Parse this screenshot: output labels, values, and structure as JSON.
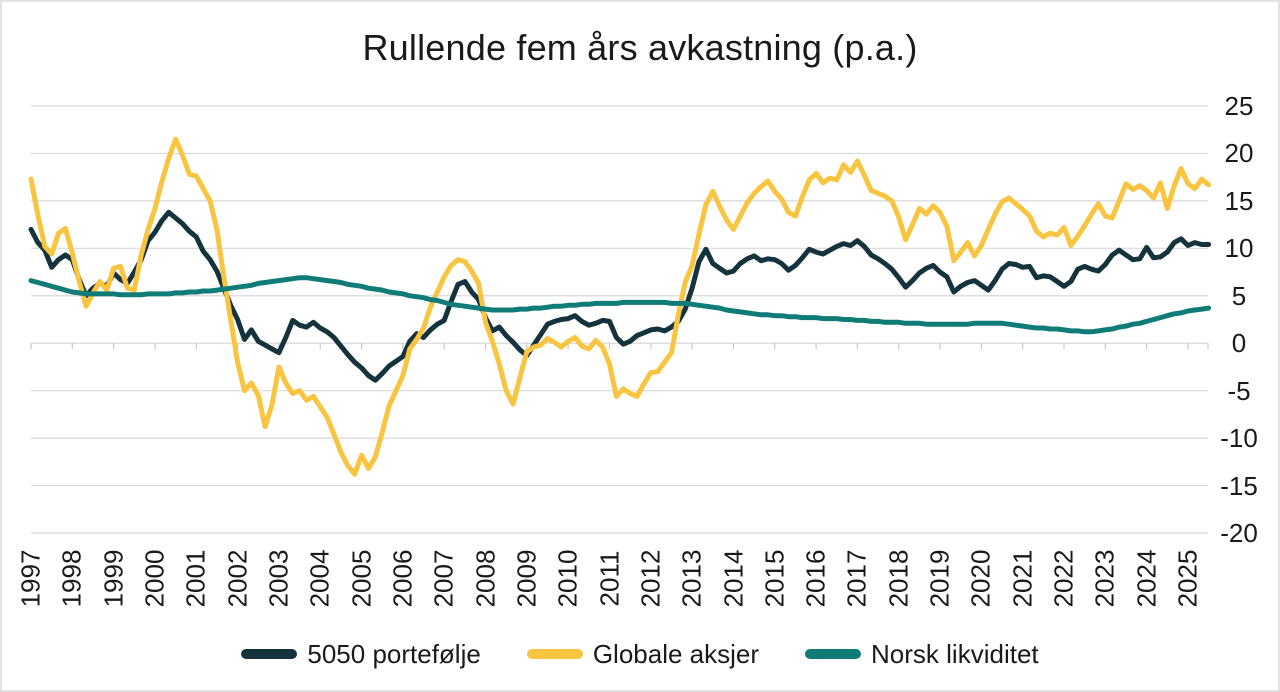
{
  "window": {
    "background": "#FFFFFF",
    "border_color": "#E2E2E2",
    "text_color": "#1A1A1A"
  },
  "chart_data": {
    "type": "line",
    "title": "Rullende fem års avkastning (p.a.)",
    "xlabel": "",
    "ylabel": "",
    "x_axis": {
      "tick_labels": [
        "1997",
        "1998",
        "1999",
        "2000",
        "2001",
        "2002",
        "2003",
        "2004",
        "2005",
        "2006",
        "2007",
        "2008",
        "2009",
        "2010",
        "2011",
        "2012",
        "2013",
        "2014",
        "2015",
        "2016",
        "2017",
        "2018",
        "2019",
        "2020",
        "2021",
        "2022",
        "2023",
        "2024",
        "2025"
      ],
      "start_year": 1997,
      "points_per_year": 6,
      "label_rotation_deg": -90
    },
    "y_axis": {
      "side": "right",
      "ticks": [
        25,
        20,
        15,
        10,
        5,
        0,
        -5,
        -10,
        -15,
        -20
      ],
      "tick_labels": [
        "25",
        "20",
        "15",
        "10",
        "5",
        "0",
        "-5",
        "-10",
        "-15",
        "-20"
      ],
      "ylim": [
        -20,
        25
      ]
    },
    "grid": {
      "horizontal": true,
      "vertical": false,
      "color": "#D9D9D9",
      "zero_tick_color": "#C9C9C9"
    },
    "legend": {
      "position": "bottom"
    },
    "series": [
      {
        "name": "5050 portefølje",
        "color": "#14333D",
        "values": [
          12.0,
          10.6,
          9.8,
          8.0,
          8.8,
          9.3,
          8.8,
          6.7,
          5.0,
          5.8,
          6.3,
          6.0,
          7.4,
          6.7,
          6.3,
          7.5,
          8.8,
          10.8,
          11.7,
          12.9,
          13.8,
          13.2,
          12.6,
          11.8,
          11.2,
          9.7,
          8.8,
          7.6,
          5.8,
          4.0,
          2.5,
          0.4,
          1.4,
          0.2,
          -0.2,
          -0.6,
          -1.0,
          0.6,
          2.4,
          1.9,
          1.7,
          2.2,
          1.6,
          1.2,
          0.6,
          -0.3,
          -1.2,
          -2.0,
          -2.6,
          -3.4,
          -3.9,
          -3.2,
          -2.4,
          -1.9,
          -1.4,
          0.2,
          1.0,
          0.6,
          1.4,
          2.0,
          2.4,
          4.4,
          6.2,
          6.5,
          5.4,
          4.6,
          2.7,
          1.3,
          1.7,
          0.8,
          0.1,
          -0.7,
          -1.3,
          -0.2,
          0.9,
          2.0,
          2.3,
          2.5,
          2.6,
          2.9,
          2.3,
          1.9,
          2.1,
          2.4,
          2.3,
          0.6,
          -0.1,
          0.2,
          0.8,
          1.1,
          1.4,
          1.5,
          1.3,
          1.7,
          2.3,
          3.6,
          5.8,
          8.6,
          9.9,
          8.4,
          7.9,
          7.4,
          7.6,
          8.4,
          8.9,
          9.2,
          8.7,
          8.9,
          8.8,
          8.4,
          7.7,
          8.2,
          9.0,
          9.9,
          9.6,
          9.4,
          9.8,
          10.2,
          10.5,
          10.3,
          10.8,
          10.2,
          9.3,
          8.9,
          8.4,
          7.8,
          6.9,
          5.9,
          6.6,
          7.4,
          7.9,
          8.2,
          7.5,
          7.0,
          5.4,
          6.0,
          6.4,
          6.6,
          6.1,
          5.6,
          6.6,
          7.8,
          8.4,
          8.3,
          8.0,
          8.1,
          6.9,
          7.1,
          7.0,
          6.5,
          6.0,
          6.5,
          7.8,
          8.1,
          7.8,
          7.6,
          8.3,
          9.3,
          9.8,
          9.3,
          8.8,
          8.9,
          10.1,
          9.0,
          9.1,
          9.6,
          10.6,
          11.0,
          10.3,
          10.6,
          10.4,
          10.4
        ]
      },
      {
        "name": "Globale aksjer",
        "color": "#F9C440",
        "values": [
          17.3,
          13.5,
          10.2,
          9.4,
          11.6,
          12.1,
          9.5,
          6.5,
          3.9,
          5.3,
          6.5,
          5.6,
          7.9,
          8.1,
          5.8,
          5.6,
          9.3,
          12.0,
          14.2,
          17.0,
          19.5,
          21.5,
          19.8,
          17.8,
          17.6,
          16.3,
          15.0,
          12.0,
          7.0,
          2.5,
          -2.0,
          -5.0,
          -4.2,
          -5.5,
          -8.8,
          -6.5,
          -2.5,
          -4.2,
          -5.3,
          -5.0,
          -6.0,
          -5.6,
          -6.7,
          -7.8,
          -9.6,
          -11.5,
          -12.9,
          -13.8,
          -11.8,
          -13.2,
          -12.0,
          -9.4,
          -6.6,
          -5.0,
          -3.4,
          -0.6,
          0.4,
          1.6,
          3.8,
          5.4,
          7.0,
          8.2,
          8.8,
          8.6,
          7.6,
          6.3,
          2.2,
          0.2,
          -2.2,
          -5.0,
          -6.4,
          -3.6,
          -0.9,
          -0.4,
          -0.2,
          0.5,
          0.1,
          -0.4,
          0.2,
          0.6,
          -0.3,
          -0.6,
          0.3,
          -0.4,
          -2.2,
          -5.6,
          -4.8,
          -5.3,
          -5.6,
          -4.3,
          -3.1,
          -3.0,
          -2.0,
          -1.0,
          3.0,
          6.4,
          8.2,
          11.5,
          14.6,
          16.0,
          14.4,
          13.0,
          12.0,
          13.4,
          14.8,
          15.8,
          16.5,
          17.1,
          16.0,
          15.2,
          13.8,
          13.4,
          15.4,
          17.2,
          17.9,
          16.9,
          17.4,
          17.2,
          18.8,
          18.0,
          19.2,
          17.7,
          16.1,
          15.8,
          15.5,
          15.0,
          13.3,
          10.9,
          12.5,
          14.2,
          13.6,
          14.5,
          13.8,
          12.3,
          8.7,
          9.6,
          10.6,
          9.2,
          10.3,
          12.0,
          13.6,
          14.9,
          15.3,
          14.7,
          14.1,
          13.4,
          11.8,
          11.2,
          11.6,
          11.4,
          12.2,
          10.3,
          11.3,
          12.4,
          13.6,
          14.7,
          13.4,
          13.2,
          15.0,
          16.8,
          16.2,
          16.6,
          16.1,
          15.3,
          16.9,
          14.2,
          16.6,
          18.4,
          16.8,
          16.3,
          17.3,
          16.7
        ]
      },
      {
        "name": "Norsk likviditet",
        "color": "#0F7C78",
        "values": [
          6.6,
          6.4,
          6.2,
          6.0,
          5.8,
          5.6,
          5.4,
          5.3,
          5.2,
          5.2,
          5.2,
          5.2,
          5.2,
          5.1,
          5.1,
          5.1,
          5.1,
          5.2,
          5.2,
          5.2,
          5.2,
          5.3,
          5.3,
          5.4,
          5.4,
          5.5,
          5.5,
          5.6,
          5.7,
          5.8,
          5.9,
          6.0,
          6.1,
          6.3,
          6.4,
          6.5,
          6.6,
          6.7,
          6.8,
          6.9,
          6.9,
          6.8,
          6.7,
          6.6,
          6.5,
          6.4,
          6.2,
          6.1,
          6.0,
          5.8,
          5.7,
          5.6,
          5.4,
          5.3,
          5.2,
          5.0,
          4.9,
          4.8,
          4.6,
          4.5,
          4.3,
          4.1,
          4.0,
          3.9,
          3.8,
          3.7,
          3.6,
          3.5,
          3.5,
          3.5,
          3.5,
          3.6,
          3.6,
          3.7,
          3.7,
          3.8,
          3.9,
          3.9,
          4.0,
          4.0,
          4.1,
          4.1,
          4.2,
          4.2,
          4.2,
          4.2,
          4.3,
          4.3,
          4.3,
          4.3,
          4.3,
          4.3,
          4.3,
          4.2,
          4.2,
          4.2,
          4.1,
          4.0,
          3.9,
          3.8,
          3.7,
          3.5,
          3.4,
          3.3,
          3.2,
          3.1,
          3.0,
          3.0,
          2.9,
          2.9,
          2.8,
          2.8,
          2.7,
          2.7,
          2.7,
          2.6,
          2.6,
          2.6,
          2.5,
          2.5,
          2.4,
          2.4,
          2.3,
          2.3,
          2.2,
          2.2,
          2.2,
          2.1,
          2.1,
          2.1,
          2.0,
          2.0,
          2.0,
          2.0,
          2.0,
          2.0,
          2.0,
          2.1,
          2.1,
          2.1,
          2.1,
          2.1,
          2.0,
          1.9,
          1.8,
          1.7,
          1.6,
          1.6,
          1.5,
          1.5,
          1.4,
          1.3,
          1.3,
          1.2,
          1.2,
          1.3,
          1.4,
          1.5,
          1.7,
          1.8,
          2.0,
          2.1,
          2.3,
          2.5,
          2.7,
          2.9,
          3.1,
          3.2,
          3.4,
          3.5,
          3.6,
          3.7
        ]
      }
    ]
  }
}
